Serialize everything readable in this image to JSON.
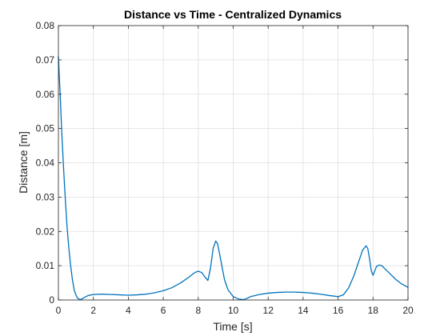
{
  "chart_data": {
    "type": "line",
    "title": "Distance vs Time - Centralized Dynamics",
    "xlabel": "Time [s]",
    "ylabel": "Distance [m]",
    "xlim": [
      0,
      20
    ],
    "ylim": [
      0,
      0.08
    ],
    "xticks": [
      0,
      2,
      4,
      6,
      8,
      10,
      12,
      14,
      16,
      18,
      20
    ],
    "yticks": [
      0,
      0.01,
      0.02,
      0.03,
      0.04,
      0.05,
      0.06,
      0.07,
      0.08
    ],
    "xtick_labels": [
      "0",
      "2",
      "4",
      "6",
      "8",
      "10",
      "12",
      "14",
      "16",
      "18",
      "20"
    ],
    "ytick_labels": [
      "0",
      "0.01",
      "0.02",
      "0.03",
      "0.04",
      "0.05",
      "0.06",
      "0.07",
      "0.08"
    ],
    "grid": true,
    "series": [
      {
        "color": "#0072bd",
        "x": [
          0,
          0.1,
          0.2,
          0.3,
          0.4,
          0.5,
          0.6,
          0.7,
          0.8,
          0.9,
          1.0,
          1.1,
          1.2,
          1.3,
          1.5,
          1.7,
          2.0,
          2.5,
          3.0,
          3.5,
          4.0,
          4.5,
          5.0,
          5.5,
          6.0,
          6.5,
          7.0,
          7.5,
          7.8,
          8.0,
          8.2,
          8.4,
          8.55,
          8.7,
          8.85,
          9.0,
          9.1,
          9.2,
          9.35,
          9.5,
          9.7,
          10.0,
          10.3,
          10.6,
          10.8,
          11.0,
          11.5,
          12.0,
          12.5,
          13.0,
          13.5,
          14.0,
          14.5,
          15.0,
          15.5,
          16.0,
          16.3,
          16.6,
          16.9,
          17.2,
          17.4,
          17.6,
          17.7,
          17.8,
          17.9,
          18.0,
          18.1,
          18.2,
          18.35,
          18.5,
          18.7,
          19.0,
          19.3,
          19.6,
          20.0
        ],
        "y": [
          0.071,
          0.06,
          0.048,
          0.038,
          0.029,
          0.021,
          0.015,
          0.01,
          0.006,
          0.003,
          0.0015,
          0.0005,
          0.0002,
          0.0002,
          0.0008,
          0.0013,
          0.0016,
          0.0017,
          0.0016,
          0.0015,
          0.0014,
          0.0015,
          0.0017,
          0.0021,
          0.0027,
          0.0036,
          0.005,
          0.0068,
          0.008,
          0.0084,
          0.008,
          0.0066,
          0.0057,
          0.0092,
          0.015,
          0.0172,
          0.0165,
          0.014,
          0.01,
          0.006,
          0.003,
          0.001,
          0.0003,
          0.0001,
          0.0005,
          0.001,
          0.0016,
          0.002,
          0.0022,
          0.0023,
          0.0023,
          0.0022,
          0.002,
          0.0017,
          0.0013,
          0.001,
          0.0015,
          0.0035,
          0.007,
          0.0115,
          0.0145,
          0.0158,
          0.015,
          0.012,
          0.0085,
          0.0072,
          0.0085,
          0.0098,
          0.0102,
          0.01,
          0.009,
          0.0075,
          0.006,
          0.0048,
          0.0037
        ]
      }
    ]
  }
}
